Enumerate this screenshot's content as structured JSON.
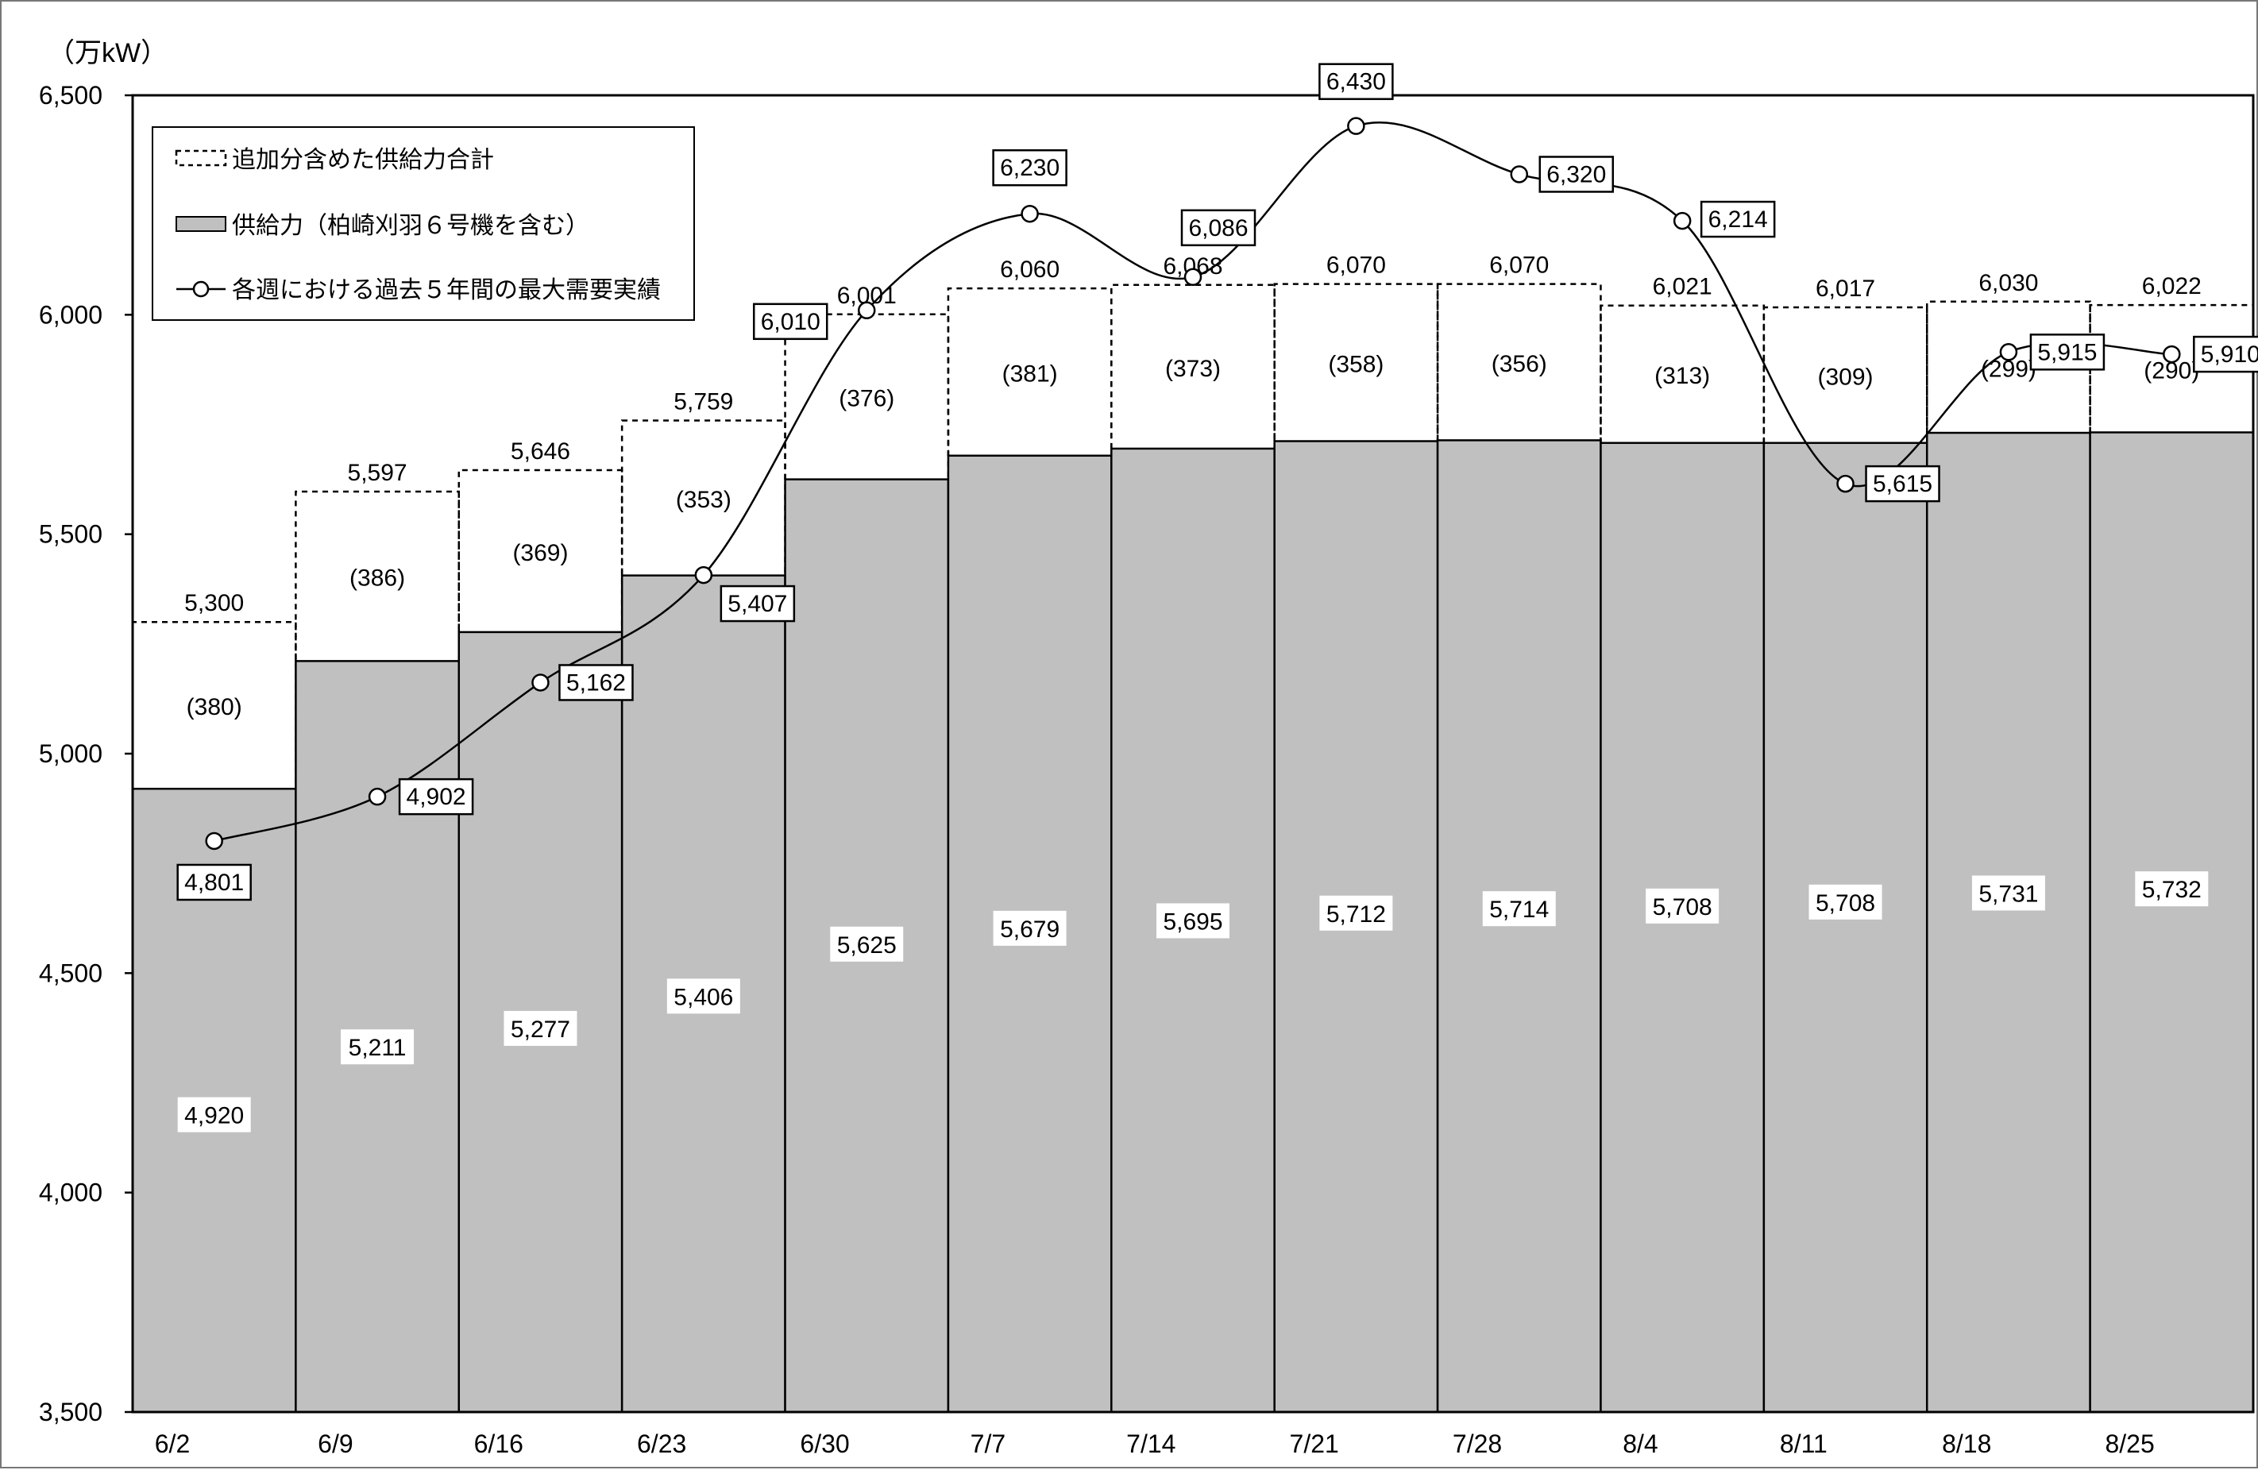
{
  "chart_data": {
    "type": "bar",
    "unit_label": "（万kW）",
    "ylim": [
      3500,
      6500
    ],
    "yticks": [
      "3,500",
      "4,000",
      "4,500",
      "5,000",
      "5,500",
      "6,000",
      "6,500"
    ],
    "ytick_values": [
      3500,
      4000,
      4500,
      5000,
      5500,
      6000,
      6500
    ],
    "categories": [
      "6/2",
      "6/9",
      "6/16",
      "6/23",
      "6/30",
      "7/7",
      "7/14",
      "7/21",
      "7/28",
      "8/4",
      "8/11",
      "8/18",
      "8/25"
    ],
    "series": [
      {
        "name": "供給力（柏崎刈羽６号機を含む）",
        "values": [
          4920,
          5211,
          5277,
          5406,
          5625,
          5679,
          5695,
          5712,
          5714,
          5708,
          5708,
          5731,
          5732
        ],
        "labels": [
          "4,920",
          "5,211",
          "5,277",
          "5,406",
          "5,625",
          "5,679",
          "5,695",
          "5,712",
          "5,714",
          "5,708",
          "5,708",
          "5,731",
          "5,732"
        ]
      },
      {
        "name": "追加分含めた供給力合計",
        "values": [
          5300,
          5597,
          5646,
          5759,
          6001,
          6060,
          6068,
          6070,
          6070,
          6021,
          6017,
          6030,
          6022
        ],
        "labels": [
          "5,300",
          "5,597",
          "5,646",
          "5,759",
          "6,001",
          "6,060",
          "6,068",
          "6,070",
          "6,070",
          "6,021",
          "6,017",
          "6,030",
          "6,022"
        ]
      },
      {
        "name": "各週における過去５年間の最大需要実績",
        "values": [
          4801,
          4902,
          5162,
          5407,
          6010,
          6230,
          6086,
          6430,
          6320,
          6214,
          5615,
          5915,
          5910
        ],
        "labels": [
          "4,801",
          "4,902",
          "5,162",
          "5,407",
          "6,010",
          "6,230",
          "6,086",
          "6,430",
          "6,320",
          "6,214",
          "5,615",
          "5,915",
          "5,910"
        ]
      }
    ],
    "additions": [
      "(380)",
      "(386)",
      "(369)",
      "(353)",
      "(376)",
      "(381)",
      "(373)",
      "(358)",
      "(356)",
      "(313)",
      "(309)",
      "(299)",
      "(290)"
    ],
    "legend_position": "top-left",
    "grid": false,
    "colors": {
      "supply_bar": "#c0c0c0",
      "bar_border": "#000000",
      "line": "#000000"
    }
  }
}
